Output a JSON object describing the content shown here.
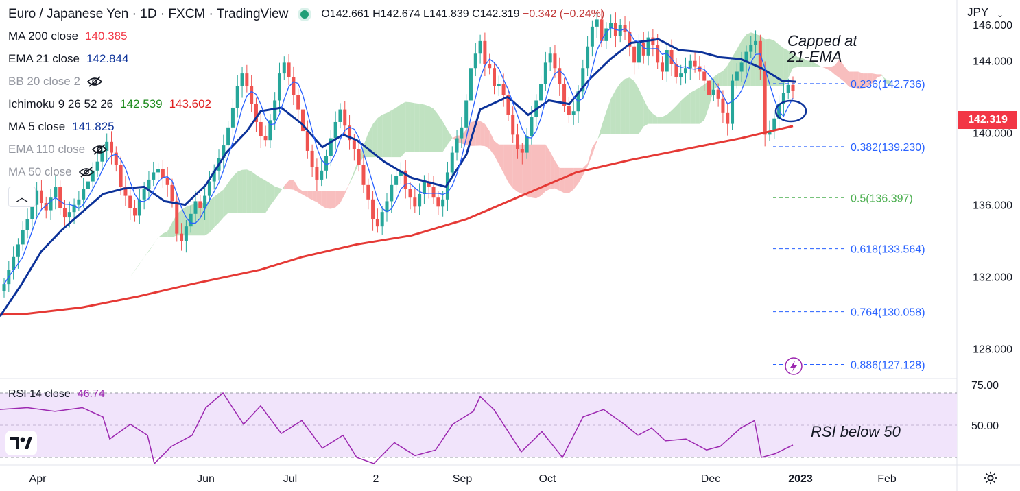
{
  "header": {
    "symbol": "Euro / Japanese Yen · 1D · FXCM · TradingView",
    "open": "O142.661",
    "high": "H142.674",
    "low": "L141.839",
    "close": "C142.319",
    "change": "−0.342 (−0.24%)"
  },
  "indicators": [
    {
      "label": "MA 200 close",
      "value": "140.385",
      "color": "#f23645",
      "muted": false
    },
    {
      "label": "EMA 21 close",
      "value": "142.844",
      "color": "#0c3299",
      "muted": false
    },
    {
      "label": "BB 20 close 2",
      "value": "",
      "color": "#9598a1",
      "muted": true
    },
    {
      "label": "Ichimoku 9 26 52 26",
      "value": "142.539",
      "value2": "143.602",
      "color": "#1b8a1b",
      "color2": "#e02020",
      "muted": false
    },
    {
      "label": "MA 5 close",
      "value": "141.825",
      "color": "#0c3299",
      "muted": false
    },
    {
      "label": "EMA 110 close",
      "value": "",
      "color": "#9598a1",
      "muted": true
    },
    {
      "label": "MA 50 close",
      "value": "",
      "color": "#9598a1",
      "muted": true
    }
  ],
  "rsi": {
    "label": "RSI 14 close",
    "value": "46.74"
  },
  "annotations": {
    "capped": [
      "Capped at",
      "21-EMA"
    ],
    "rsi_note": "RSI below 50"
  },
  "axis": {
    "currency": "JPY",
    "last_price": "142.319",
    "price_ticks": [
      "146.000",
      "144.000",
      "140.000",
      "136.000",
      "132.000",
      "128.000"
    ],
    "rsi_ticks": [
      "75.00",
      "50.00"
    ],
    "time_labels": [
      "Apr",
      "Jun",
      "Jul",
      "2",
      "Sep",
      "Oct",
      "Dec",
      "2023",
      "Feb"
    ]
  },
  "colors": {
    "up": "#26a69a",
    "down": "#ef5350",
    "cloud_up": "#a5d6a7",
    "cloud_down": "#f5a3a3",
    "ma200": "#e53935",
    "ema21": "#0c3299",
    "rsi": "#9c27b0",
    "rsi_band": "#f1e4fb"
  },
  "chart_data": {
    "type": "candlestick",
    "ylim": [
      126.5,
      147.0
    ],
    "price_ticks": [
      128,
      132,
      136,
      140,
      144,
      146
    ],
    "fibonacci": [
      {
        "label": "0.236(142.736)",
        "value": 142.736,
        "color": "#2962ff"
      },
      {
        "label": "0.382(139.230)",
        "value": 139.23,
        "color": "#2962ff"
      },
      {
        "label": "0.5(136.397)",
        "value": 136.397,
        "color": "#4caf50"
      },
      {
        "label": "0.618(133.564)",
        "value": 133.564,
        "color": "#2962ff"
      },
      {
        "label": "0.764(130.058)",
        "value": 130.058,
        "color": "#2962ff"
      },
      {
        "label": "0.886(127.128)",
        "value": 127.128,
        "color": "#2962ff"
      }
    ],
    "close_series": [
      131.6,
      132.4,
      133.1,
      133.8,
      134.6,
      135.2,
      136.0,
      136.8,
      136.1,
      135.7,
      136.4,
      137.0,
      135.8,
      135.3,
      135.6,
      136.0,
      136.3,
      136.9,
      137.3,
      137.9,
      138.4,
      139.0,
      139.5,
      138.9,
      138.2,
      137.0,
      136.5,
      135.8,
      135.4,
      136.3,
      136.9,
      137.4,
      137.8,
      138.0,
      137.5,
      137.1,
      136.2,
      134.4,
      134.0,
      134.8,
      135.5,
      136.2,
      135.8,
      136.5,
      137.3,
      137.9,
      138.6,
      139.3,
      140.3,
      141.4,
      142.6,
      143.3,
      142.6,
      141.6,
      140.6,
      139.8,
      139.6,
      140.7,
      141.8,
      143.3,
      143.9,
      143.1,
      142.1,
      141.3,
      140.1,
      139.0,
      138.1,
      137.4,
      137.9,
      138.7,
      139.7,
      140.6,
      141.3,
      140.4,
      139.6,
      139.1,
      138.2,
      137.1,
      136.3,
      135.2,
      134.8,
      135.6,
      136.2,
      137.1,
      137.6,
      137.9,
      136.9,
      136.4,
      135.9,
      136.6,
      137.3,
      137.0,
      136.4,
      135.9,
      136.3,
      137.8,
      138.9,
      139.7,
      140.3,
      141.8,
      143.6,
      144.4,
      145.1,
      143.8,
      143.6,
      142.6,
      142.7,
      142.1,
      141.0,
      139.9,
      139.1,
      138.9,
      139.8,
      140.9,
      141.8,
      142.7,
      143.9,
      144.4,
      143.6,
      142.7,
      141.5,
      141.0,
      141.2,
      142.3,
      143.6,
      144.8,
      145.9,
      146.3,
      145.1,
      145.8,
      146.1,
      145.4,
      146.0,
      145.6,
      144.8,
      143.9,
      145.0,
      144.3,
      145.3,
      144.9,
      143.9,
      143.4,
      144.6,
      143.8,
      143.1,
      143.3,
      143.6,
      144.0,
      143.7,
      143.4,
      142.9,
      142.1,
      142.4,
      141.9,
      141.1,
      140.5,
      142.9,
      143.4,
      143.9,
      144.5,
      144.9,
      145.1,
      143.5,
      139.9,
      140.1,
      140.8,
      141.6,
      142.2,
      142.661,
      142.319
    ],
    "ma200_series": [
      [
        0,
        129.9
      ],
      [
        40,
        129.95
      ],
      [
        120,
        130.3
      ],
      [
        200,
        130.9
      ],
      [
        280,
        131.6
      ],
      [
        380,
        132.4
      ],
      [
        440,
        133.1
      ],
      [
        520,
        133.8
      ],
      [
        600,
        134.3
      ],
      [
        680,
        135.2
      ],
      [
        760,
        136.5
      ],
      [
        840,
        137.8
      ],
      [
        920,
        138.5
      ],
      [
        1000,
        139.1
      ],
      [
        1080,
        139.7
      ],
      [
        1156,
        140.38
      ]
    ],
    "ema21_series": [
      [
        0,
        129.8
      ],
      [
        30,
        131.5
      ],
      [
        60,
        133.4
      ],
      [
        90,
        134.6
      ],
      [
        120,
        135.6
      ],
      [
        150,
        136.6
      ],
      [
        180,
        136.9
      ],
      [
        210,
        137.0
      ],
      [
        240,
        136.2
      ],
      [
        270,
        136.0
      ],
      [
        300,
        137.1
      ],
      [
        330,
        138.9
      ],
      [
        360,
        140.1
      ],
      [
        380,
        141.2
      ],
      [
        410,
        141.4
      ],
      [
        440,
        140.5
      ],
      [
        470,
        139.2
      ],
      [
        500,
        139.9
      ],
      [
        520,
        139.6
      ],
      [
        560,
        138.4
      ],
      [
        600,
        137.5
      ],
      [
        650,
        137.0
      ],
      [
        680,
        138.8
      ],
      [
        700,
        141.3
      ],
      [
        740,
        142.0
      ],
      [
        770,
        141.0
      ],
      [
        800,
        141.8
      ],
      [
        830,
        141.6
      ],
      [
        860,
        143.0
      ],
      [
        890,
        144.1
      ],
      [
        920,
        145.0
      ],
      [
        960,
        145.2
      ],
      [
        990,
        144.6
      ],
      [
        1020,
        144.5
      ],
      [
        1050,
        144.2
      ],
      [
        1080,
        144.1
      ],
      [
        1110,
        143.6
      ],
      [
        1140,
        142.9
      ],
      [
        1160,
        142.84
      ]
    ],
    "rsi_series": [
      [
        0,
        66
      ],
      [
        40,
        67
      ],
      [
        80,
        65
      ],
      [
        120,
        67
      ],
      [
        150,
        62
      ],
      [
        160,
        50
      ],
      [
        190,
        58
      ],
      [
        215,
        52
      ],
      [
        225,
        35
      ],
      [
        250,
        46
      ],
      [
        280,
        52
      ],
      [
        300,
        67
      ],
      [
        325,
        75
      ],
      [
        355,
        58
      ],
      [
        380,
        68
      ],
      [
        410,
        53
      ],
      [
        440,
        60
      ],
      [
        470,
        45
      ],
      [
        500,
        52
      ],
      [
        520,
        40
      ],
      [
        545,
        33
      ],
      [
        575,
        48
      ],
      [
        605,
        41
      ],
      [
        635,
        44
      ],
      [
        660,
        58
      ],
      [
        690,
        65
      ],
      [
        700,
        73
      ],
      [
        720,
        66
      ],
      [
        760,
        43
      ],
      [
        790,
        54
      ],
      [
        820,
        40
      ],
      [
        850,
        62
      ],
      [
        880,
        66
      ],
      [
        910,
        58
      ],
      [
        930,
        52
      ],
      [
        950,
        56
      ],
      [
        970,
        49
      ],
      [
        1000,
        50
      ],
      [
        1030,
        44
      ],
      [
        1050,
        46
      ],
      [
        1080,
        56
      ],
      [
        1100,
        60
      ],
      [
        1110,
        40
      ],
      [
        1130,
        42
      ],
      [
        1156,
        46.74
      ]
    ],
    "rsi_ylim": [
      30,
      80
    ]
  }
}
